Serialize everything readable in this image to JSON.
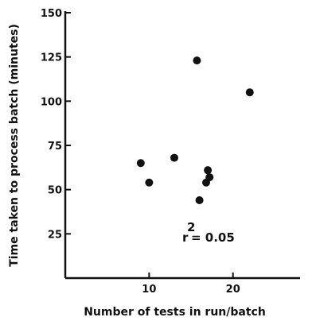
{
  "chart_data": {
    "type": "scatter",
    "title": "",
    "xlabel": "Number of tests in run/batch",
    "ylabel": "Time taken to process batch (minutes)",
    "xlim": [
      0,
      28
    ],
    "ylim": [
      0,
      150
    ],
    "x_ticks": [
      10,
      20
    ],
    "x_tick_labels": [
      "10",
      "20"
    ],
    "y_ticks": [
      25,
      50,
      75,
      100,
      125,
      150
    ],
    "y_tick_labels": [
      "25",
      "50",
      "75",
      "100",
      "125",
      "150"
    ],
    "points": [
      {
        "x": 9,
        "y": 65
      },
      {
        "x": 10,
        "y": 54
      },
      {
        "x": 13,
        "y": 68
      },
      {
        "x": 15.7,
        "y": 123
      },
      {
        "x": 16,
        "y": 44
      },
      {
        "x": 16.8,
        "y": 54
      },
      {
        "x": 17,
        "y": 61
      },
      {
        "x": 17.2,
        "y": 57
      },
      {
        "x": 22,
        "y": 105
      }
    ],
    "annotation": {
      "text": "r",
      "superscript": "2",
      "value": "= 0.05"
    },
    "grid": false,
    "axes_color": "#111111",
    "marker_color": "#111111"
  }
}
